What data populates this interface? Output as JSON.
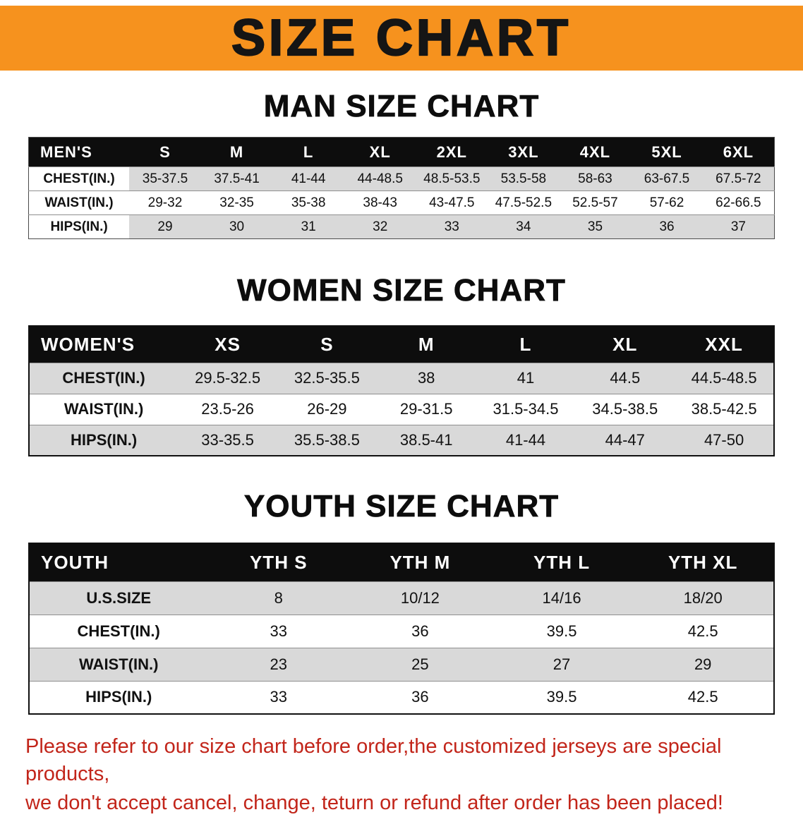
{
  "banner": {
    "title": "SIZE CHART"
  },
  "sections": {
    "men": {
      "heading": "MAN SIZE CHART",
      "table": {
        "corner": "MEN'S",
        "columns": [
          "S",
          "M",
          "L",
          "XL",
          "2XL",
          "3XL",
          "4XL",
          "5XL",
          "6XL"
        ],
        "rows": [
          {
            "label": "CHEST(IN.)",
            "values": [
              "35-37.5",
              "37.5-41",
              "41-44",
              "44-48.5",
              "48.5-53.5",
              "53.5-58",
              "58-63",
              "63-67.5",
              "67.5-72"
            ]
          },
          {
            "label": "WAIST(IN.)",
            "values": [
              "29-32",
              "32-35",
              "35-38",
              "38-43",
              "43-47.5",
              "47.5-52.5",
              "52.5-57",
              "57-62",
              "62-66.5"
            ]
          },
          {
            "label": "HIPS(IN.)",
            "values": [
              "29",
              "30",
              "31",
              "32",
              "33",
              "34",
              "35",
              "36",
              "37"
            ]
          }
        ]
      }
    },
    "women": {
      "heading": "WOMEN SIZE CHART",
      "table": {
        "corner": "WOMEN'S",
        "columns": [
          "XS",
          "S",
          "M",
          "L",
          "XL",
          "XXL"
        ],
        "rows": [
          {
            "label": "CHEST(IN.)",
            "values": [
              "29.5-32.5",
              "32.5-35.5",
              "38",
              "41",
              "44.5",
              "44.5-48.5"
            ]
          },
          {
            "label": "WAIST(IN.)",
            "values": [
              "23.5-26",
              "26-29",
              "29-31.5",
              "31.5-34.5",
              "34.5-38.5",
              "38.5-42.5"
            ]
          },
          {
            "label": "HIPS(IN.)",
            "values": [
              "33-35.5",
              "35.5-38.5",
              "38.5-41",
              "41-44",
              "44-47",
              "47-50"
            ]
          }
        ]
      }
    },
    "youth": {
      "heading": "YOUTH SIZE CHART",
      "table": {
        "corner": "YOUTH",
        "columns": [
          "YTH S",
          "YTH M",
          "YTH L",
          "YTH XL"
        ],
        "rows": [
          {
            "label": "U.S.SIZE",
            "values": [
              "8",
              "10/12",
              "14/16",
              "18/20"
            ]
          },
          {
            "label": "CHEST(IN.)",
            "values": [
              "33",
              "36",
              "39.5",
              "42.5"
            ]
          },
          {
            "label": "WAIST(IN.)",
            "values": [
              "23",
              "25",
              "27",
              "29"
            ]
          },
          {
            "label": "HIPS(IN.)",
            "values": [
              "33",
              "36",
              "39.5",
              "42.5"
            ]
          }
        ]
      }
    }
  },
  "notice": {
    "line1": "Please refer to our size chart before order,the customized jerseys are special products,",
    "line2": "we don't accept cancel, change, teturn or refund after order has been placed!"
  },
  "colors": {
    "banner_orange": "#f6921e",
    "table_header_black": "#0d0d0d",
    "row_shade_gray": "#d9d9d9",
    "notice_red": "#c2251a"
  }
}
